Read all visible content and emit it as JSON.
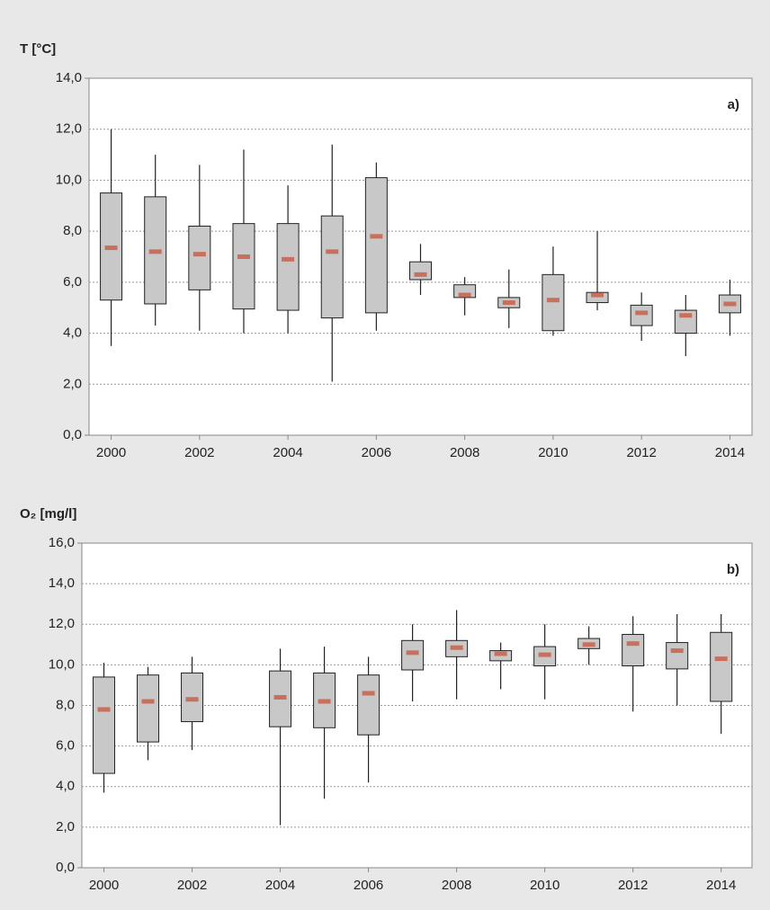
{
  "chart_data": [
    {
      "type": "box",
      "ylabel": "T [°C]",
      "annotation": "a)",
      "x": [
        2000,
        2001,
        2002,
        2003,
        2004,
        2005,
        2006,
        2007,
        2008,
        2009,
        2010,
        2011,
        2012,
        2013,
        2014
      ],
      "xlim": [
        1999.5,
        2014.5
      ],
      "xticks": [
        2000,
        2002,
        2004,
        2006,
        2008,
        2010,
        2012,
        2014
      ],
      "ylim": [
        0,
        14
      ],
      "yticks": [
        {
          "value": 0,
          "label": "0,0"
        },
        {
          "value": 2,
          "label": "2,0"
        },
        {
          "value": 4,
          "label": "4,0"
        },
        {
          "value": 6,
          "label": "6,0"
        },
        {
          "value": 8,
          "label": "8,0"
        },
        {
          "value": 10,
          "label": "10,0"
        },
        {
          "value": 12,
          "label": "12,0"
        },
        {
          "value": 14,
          "label": "14,0"
        }
      ],
      "grid": true,
      "box_color": "#c8c8c8",
      "median_color": "#c8705e",
      "min": [
        3.5,
        4.3,
        4.1,
        4.0,
        4.0,
        2.1,
        4.1,
        5.5,
        4.7,
        4.2,
        3.9,
        4.9,
        3.7,
        3.1,
        3.9
      ],
      "q1": [
        5.3,
        5.15,
        5.7,
        4.95,
        4.9,
        4.6,
        4.8,
        6.1,
        5.4,
        5.0,
        4.1,
        5.2,
        4.3,
        4.0,
        4.8
      ],
      "median": [
        7.35,
        7.2,
        7.1,
        7.0,
        6.9,
        7.2,
        7.8,
        6.3,
        5.5,
        5.2,
        5.3,
        5.5,
        4.8,
        4.7,
        5.15
      ],
      "q3": [
        9.5,
        9.35,
        8.2,
        8.3,
        8.3,
        8.6,
        10.1,
        6.8,
        5.9,
        5.4,
        6.3,
        5.6,
        5.1,
        4.9,
        5.5
      ],
      "max": [
        12.0,
        11.0,
        10.6,
        11.2,
        9.8,
        11.4,
        10.7,
        7.5,
        6.2,
        6.5,
        7.4,
        8.0,
        5.6,
        5.5,
        6.1
      ]
    },
    {
      "type": "box",
      "ylabel": "O₂ [mg/l]",
      "annotation": "b)",
      "x": [
        2000,
        2001,
        2002,
        2003,
        2004,
        2005,
        2006,
        2007,
        2008,
        2009,
        2010,
        2011,
        2012,
        2013,
        2014
      ],
      "xlim": [
        1999.5,
        2014.7
      ],
      "xticks": [
        2000,
        2002,
        2004,
        2006,
        2008,
        2010,
        2012,
        2014
      ],
      "ylim": [
        0,
        16
      ],
      "yticks": [
        {
          "value": 0,
          "label": "0,0"
        },
        {
          "value": 2,
          "label": "2,0"
        },
        {
          "value": 4,
          "label": "4,0"
        },
        {
          "value": 6,
          "label": "6,0"
        },
        {
          "value": 8,
          "label": "8,0"
        },
        {
          "value": 10,
          "label": "10,0"
        },
        {
          "value": 12,
          "label": "12,0"
        },
        {
          "value": 14,
          "label": "14,0"
        },
        {
          "value": 16,
          "label": "16,0"
        }
      ],
      "grid": true,
      "box_color": "#c8c8c8",
      "median_color": "#c8705e",
      "min": [
        3.7,
        5.3,
        5.8,
        null,
        2.1,
        3.4,
        4.2,
        8.2,
        8.3,
        8.8,
        8.3,
        10.0,
        7.7,
        8.0,
        6.6
      ],
      "q1": [
        4.65,
        6.2,
        7.2,
        null,
        6.95,
        6.9,
        6.55,
        9.75,
        10.4,
        10.2,
        9.95,
        10.8,
        9.95,
        9.8,
        8.2
      ],
      "median": [
        7.8,
        8.2,
        8.3,
        null,
        8.4,
        8.2,
        8.6,
        10.6,
        10.85,
        10.55,
        10.5,
        11.0,
        11.05,
        10.7,
        10.3
      ],
      "q3": [
        9.4,
        9.5,
        9.6,
        null,
        9.7,
        9.6,
        9.5,
        11.2,
        11.2,
        10.7,
        10.9,
        11.3,
        11.5,
        11.1,
        11.6
      ],
      "max": [
        10.1,
        9.9,
        10.4,
        null,
        10.8,
        10.9,
        10.4,
        12.0,
        12.7,
        11.1,
        12.0,
        11.9,
        12.4,
        12.5,
        12.5
      ]
    }
  ]
}
